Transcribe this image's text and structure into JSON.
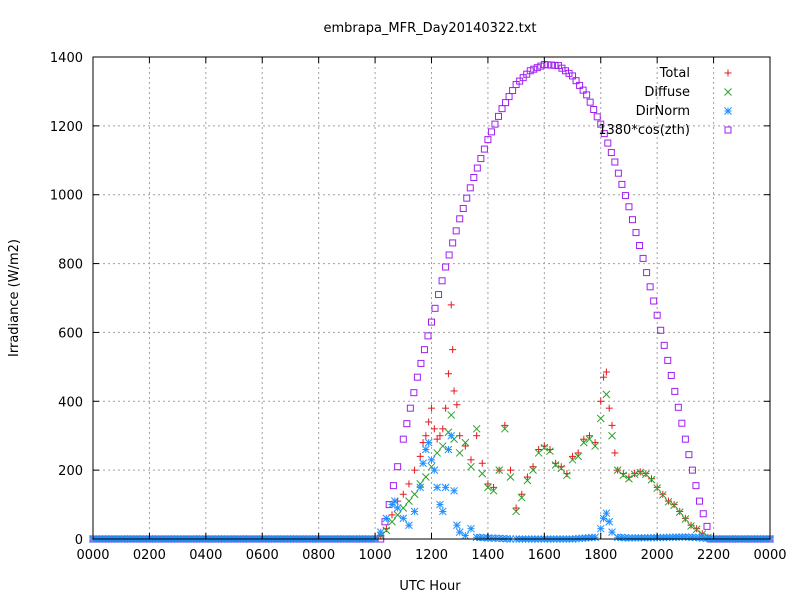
{
  "chart_data": {
    "type": "scatter",
    "title": "embrapa_MFR_Day20140322.txt",
    "xlabel": "UTC Hour",
    "ylabel": "Irradiance (W/m2)",
    "xlim": [
      0,
      2400
    ],
    "ylim": [
      0,
      1400
    ],
    "x_tick_labels": [
      "0000",
      "0200",
      "0400",
      "0600",
      "0800",
      "1000",
      "1200",
      "1400",
      "1600",
      "1800",
      "2000",
      "2200",
      "0000"
    ],
    "y_ticks": [
      0,
      200,
      400,
      600,
      800,
      1000,
      1200,
      1400
    ],
    "grid": true,
    "legend_position": "top-right",
    "series": [
      {
        "name": "Total",
        "marker": "plus",
        "color": "#e41a1c",
        "points": [
          [
            0,
            0
          ],
          [
            200,
            0
          ],
          [
            400,
            0
          ],
          [
            600,
            0
          ],
          [
            800,
            0
          ],
          [
            1000,
            0
          ],
          [
            1020,
            10
          ],
          [
            1040,
            30
          ],
          [
            1060,
            70
          ],
          [
            1080,
            110
          ],
          [
            1100,
            130
          ],
          [
            1120,
            160
          ],
          [
            1140,
            200
          ],
          [
            1160,
            240
          ],
          [
            1170,
            280
          ],
          [
            1180,
            300
          ],
          [
            1190,
            340
          ],
          [
            1200,
            380
          ],
          [
            1210,
            320
          ],
          [
            1220,
            290
          ],
          [
            1230,
            300
          ],
          [
            1240,
            320
          ],
          [
            1250,
            380
          ],
          [
            1260,
            480
          ],
          [
            1270,
            680
          ],
          [
            1275,
            550
          ],
          [
            1280,
            430
          ],
          [
            1290,
            390
          ],
          [
            1300,
            300
          ],
          [
            1320,
            270
          ],
          [
            1340,
            230
          ],
          [
            1360,
            300
          ],
          [
            1380,
            220
          ],
          [
            1400,
            160
          ],
          [
            1420,
            150
          ],
          [
            1440,
            200
          ],
          [
            1460,
            330
          ],
          [
            1480,
            200
          ],
          [
            1500,
            90
          ],
          [
            1520,
            130
          ],
          [
            1540,
            180
          ],
          [
            1560,
            210
          ],
          [
            1580,
            260
          ],
          [
            1600,
            270
          ],
          [
            1620,
            260
          ],
          [
            1640,
            220
          ],
          [
            1660,
            210
          ],
          [
            1680,
            190
          ],
          [
            1700,
            240
          ],
          [
            1720,
            250
          ],
          [
            1740,
            290
          ],
          [
            1760,
            300
          ],
          [
            1780,
            280
          ],
          [
            1800,
            400
          ],
          [
            1810,
            470
          ],
          [
            1820,
            485
          ],
          [
            1830,
            380
          ],
          [
            1840,
            330
          ],
          [
            1850,
            250
          ],
          [
            1860,
            200
          ],
          [
            1880,
            190
          ],
          [
            1900,
            180
          ],
          [
            1920,
            190
          ],
          [
            1940,
            195
          ],
          [
            1960,
            190
          ],
          [
            1980,
            175
          ],
          [
            2000,
            150
          ],
          [
            2020,
            130
          ],
          [
            2040,
            110
          ],
          [
            2060,
            100
          ],
          [
            2080,
            80
          ],
          [
            2100,
            60
          ],
          [
            2120,
            40
          ],
          [
            2140,
            30
          ],
          [
            2160,
            15
          ],
          [
            2180,
            5
          ],
          [
            2200,
            0
          ],
          [
            2300,
            0
          ],
          [
            2400,
            0
          ]
        ]
      },
      {
        "name": "Diffuse",
        "marker": "cross",
        "color": "#2ca02c",
        "points": [
          [
            0,
            0
          ],
          [
            200,
            0
          ],
          [
            400,
            0
          ],
          [
            600,
            0
          ],
          [
            800,
            0
          ],
          [
            1000,
            0
          ],
          [
            1020,
            10
          ],
          [
            1040,
            25
          ],
          [
            1060,
            50
          ],
          [
            1080,
            70
          ],
          [
            1100,
            90
          ],
          [
            1120,
            110
          ],
          [
            1140,
            130
          ],
          [
            1160,
            160
          ],
          [
            1180,
            180
          ],
          [
            1200,
            210
          ],
          [
            1220,
            250
          ],
          [
            1240,
            270
          ],
          [
            1260,
            310
          ],
          [
            1270,
            360
          ],
          [
            1280,
            290
          ],
          [
            1300,
            250
          ],
          [
            1320,
            280
          ],
          [
            1340,
            210
          ],
          [
            1360,
            320
          ],
          [
            1380,
            190
          ],
          [
            1400,
            150
          ],
          [
            1420,
            140
          ],
          [
            1440,
            200
          ],
          [
            1460,
            320
          ],
          [
            1480,
            180
          ],
          [
            1500,
            80
          ],
          [
            1520,
            120
          ],
          [
            1540,
            170
          ],
          [
            1560,
            200
          ],
          [
            1580,
            250
          ],
          [
            1600,
            265
          ],
          [
            1620,
            255
          ],
          [
            1640,
            215
          ],
          [
            1660,
            205
          ],
          [
            1680,
            185
          ],
          [
            1700,
            230
          ],
          [
            1720,
            240
          ],
          [
            1740,
            280
          ],
          [
            1760,
            290
          ],
          [
            1780,
            270
          ],
          [
            1800,
            350
          ],
          [
            1820,
            420
          ],
          [
            1840,
            300
          ],
          [
            1860,
            200
          ],
          [
            1880,
            185
          ],
          [
            1900,
            175
          ],
          [
            1920,
            188
          ],
          [
            1940,
            193
          ],
          [
            1960,
            188
          ],
          [
            1980,
            172
          ],
          [
            2000,
            148
          ],
          [
            2020,
            128
          ],
          [
            2040,
            108
          ],
          [
            2060,
            98
          ],
          [
            2080,
            78
          ],
          [
            2100,
            58
          ],
          [
            2120,
            38
          ],
          [
            2140,
            28
          ],
          [
            2160,
            14
          ],
          [
            2180,
            4
          ],
          [
            2200,
            0
          ],
          [
            2300,
            0
          ],
          [
            2400,
            0
          ]
        ]
      },
      {
        "name": "DirNorm",
        "marker": "star",
        "color": "#1f8fff",
        "points": [
          [
            0,
            0
          ],
          [
            200,
            0
          ],
          [
            400,
            0
          ],
          [
            600,
            0
          ],
          [
            800,
            0
          ],
          [
            1000,
            0
          ],
          [
            1020,
            20
          ],
          [
            1040,
            60
          ],
          [
            1060,
            100
          ],
          [
            1070,
            110
          ],
          [
            1080,
            90
          ],
          [
            1100,
            60
          ],
          [
            1120,
            40
          ],
          [
            1140,
            80
          ],
          [
            1160,
            150
          ],
          [
            1170,
            220
          ],
          [
            1180,
            260
          ],
          [
            1190,
            280
          ],
          [
            1200,
            230
          ],
          [
            1210,
            200
          ],
          [
            1220,
            150
          ],
          [
            1230,
            100
          ],
          [
            1240,
            80
          ],
          [
            1250,
            150
          ],
          [
            1260,
            260
          ],
          [
            1270,
            300
          ],
          [
            1280,
            140
          ],
          [
            1290,
            40
          ],
          [
            1300,
            20
          ],
          [
            1320,
            10
          ],
          [
            1340,
            30
          ],
          [
            1360,
            5
          ],
          [
            1400,
            3
          ],
          [
            1440,
            2
          ],
          [
            1480,
            0
          ],
          [
            1500,
            0
          ],
          [
            1600,
            0
          ],
          [
            1700,
            0
          ],
          [
            1780,
            5
          ],
          [
            1800,
            30
          ],
          [
            1810,
            60
          ],
          [
            1820,
            75
          ],
          [
            1830,
            50
          ],
          [
            1840,
            20
          ],
          [
            1860,
            5
          ],
          [
            1900,
            3
          ],
          [
            2000,
            4
          ],
          [
            2100,
            6
          ],
          [
            2150,
            4
          ],
          [
            2200,
            0
          ],
          [
            2300,
            0
          ],
          [
            2400,
            0
          ]
        ]
      },
      {
        "name": "1380*cos(zth)",
        "marker": "square",
        "color": "#a020f0",
        "points": [
          [
            0,
            0
          ],
          [
            200,
            0
          ],
          [
            400,
            0
          ],
          [
            600,
            0
          ],
          [
            800,
            0
          ],
          [
            1000,
            0
          ],
          [
            1020,
            0
          ],
          [
            1050,
            100
          ],
          [
            1080,
            210
          ],
          [
            1100,
            290
          ],
          [
            1150,
            470
          ],
          [
            1200,
            630
          ],
          [
            1250,
            790
          ],
          [
            1300,
            930
          ],
          [
            1350,
            1050
          ],
          [
            1400,
            1160
          ],
          [
            1450,
            1250
          ],
          [
            1500,
            1320
          ],
          [
            1550,
            1360
          ],
          [
            1600,
            1378
          ],
          [
            1650,
            1375
          ],
          [
            1700,
            1345
          ],
          [
            1750,
            1290
          ],
          [
            1800,
            1205
          ],
          [
            1850,
            1095
          ],
          [
            1900,
            965
          ],
          [
            1950,
            815
          ],
          [
            2000,
            650
          ],
          [
            2050,
            475
          ],
          [
            2100,
            290
          ],
          [
            2150,
            110
          ],
          [
            2190,
            0
          ],
          [
            2200,
            0
          ],
          [
            2300,
            0
          ],
          [
            2400,
            0
          ]
        ]
      }
    ]
  }
}
